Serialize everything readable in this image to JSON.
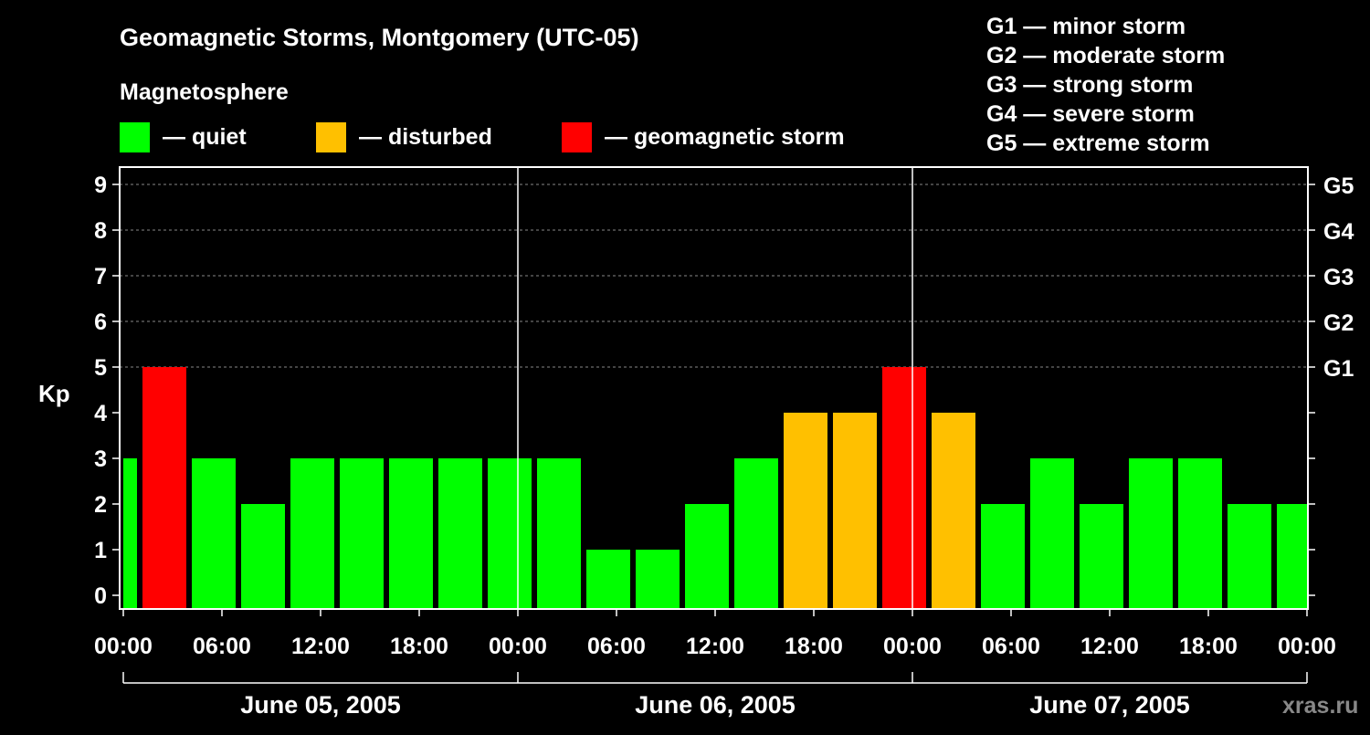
{
  "chart_data": {
    "type": "bar",
    "title": "Geomagnetic Storms, Montgomery (UTC-05)",
    "legend_title": "Magnetosphere",
    "legend": [
      {
        "label": "— quiet",
        "color": "#00ff00"
      },
      {
        "label": "— disturbed",
        "color": "#ffc000"
      },
      {
        "label": "— geomagnetic storm",
        "color": "#ff0000"
      }
    ],
    "storm_scale": [
      "G1 — minor storm",
      "G2 — moderate storm",
      "G3 — strong storm",
      "G4 — severe storm",
      "G5 — extreme storm"
    ],
    "ylabel": "Kp",
    "ylim": [
      0,
      9
    ],
    "yticks": [
      0,
      1,
      2,
      3,
      4,
      5,
      6,
      7,
      8,
      9
    ],
    "right_ticks": [
      {
        "kp": 5,
        "label": "G1"
      },
      {
        "kp": 6,
        "label": "G2"
      },
      {
        "kp": 7,
        "label": "G3"
      },
      {
        "kp": 8,
        "label": "G4"
      },
      {
        "kp": 9,
        "label": "G5"
      }
    ],
    "x_range_hours": [
      0,
      72
    ],
    "bar_duration_hours": 3,
    "xticks": [
      "00:00",
      "06:00",
      "12:00",
      "18:00",
      "00:00",
      "06:00",
      "12:00",
      "18:00",
      "00:00",
      "06:00",
      "12:00",
      "18:00",
      "00:00"
    ],
    "days": [
      "June 05, 2005",
      "June 06, 2005",
      "June 07, 2005"
    ],
    "bar_start_hours": [
      -2,
      1,
      4,
      7,
      10,
      13,
      16,
      19,
      22,
      25,
      28,
      31,
      34,
      37,
      40,
      43,
      46,
      49,
      52,
      55,
      58,
      61,
      64,
      67,
      70
    ],
    "values": [
      3,
      5,
      3,
      2,
      3,
      3,
      3,
      3,
      3,
      3,
      1,
      1,
      2,
      3,
      4,
      4,
      5,
      4,
      2,
      3,
      2,
      3,
      3,
      2,
      2
    ],
    "colors": {
      "quiet": "#00ff00",
      "disturbed": "#ffc000",
      "storm": "#ff0000"
    },
    "grid": true
  },
  "watermark": "xras.ru"
}
